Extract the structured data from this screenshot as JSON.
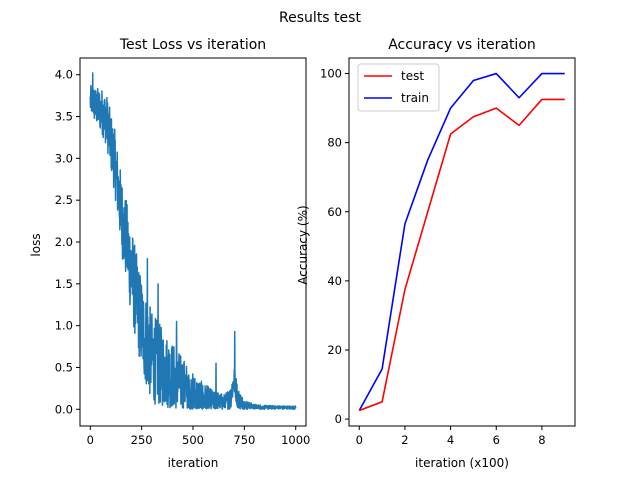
{
  "figure": {
    "suptitle": "Results test"
  },
  "chart_data": [
    {
      "type": "line",
      "title": "Test Loss vs iteration",
      "xlabel": "iteration",
      "ylabel": "loss",
      "xlim": [
        -50,
        1050
      ],
      "ylim": [
        -0.2,
        4.2
      ],
      "xticks": [
        0,
        250,
        500,
        750,
        1000
      ],
      "yticks": [
        0.0,
        0.5,
        1.0,
        1.5,
        2.0,
        2.5,
        3.0,
        3.5,
        4.0
      ],
      "yticks_labels": [
        "0.0",
        "0.5",
        "1.0",
        "1.5",
        "2.0",
        "2.5",
        "3.0",
        "3.5",
        "4.0"
      ],
      "legend": null,
      "series": [
        {
          "color": "#1f77b4",
          "trend": {
            "x": [
              0,
              10,
              25,
              40,
              60,
              80,
              100,
              120,
              140,
              160,
              180,
              200,
              230,
              260,
              300,
              350,
              400,
              450,
              500,
              550,
              600,
              650,
              680,
              700,
              720,
              750,
              800,
              850,
              900,
              950,
              1000
            ],
            "y": [
              3.68,
              3.7,
              3.62,
              3.6,
              3.55,
              3.45,
              3.2,
              2.95,
              2.55,
              2.2,
              1.95,
              1.65,
              1.25,
              0.9,
              0.62,
              0.5,
              0.4,
              0.3,
              0.18,
              0.12,
              0.09,
              0.08,
              0.12,
              0.35,
              0.12,
              0.05,
              0.03,
              0.02,
              0.02,
              0.02,
              0.02
            ]
          },
          "spread": {
            "x": [
              0,
              100,
              200,
              300,
              400,
              500,
              600,
              650,
              700,
              750,
              800,
              1000
            ],
            "y": [
              0.18,
              0.35,
              0.55,
              0.55,
              0.4,
              0.25,
              0.14,
              0.1,
              0.18,
              0.06,
              0.03,
              0.02
            ]
          },
          "spikes": [
            {
              "x": 12,
              "y": 4.02
            },
            {
              "x": 278,
              "y": 1.8
            },
            {
              "x": 330,
              "y": 1.5
            },
            {
              "x": 420,
              "y": 1.05
            },
            {
              "x": 703,
              "y": 0.93
            },
            {
              "x": 612,
              "y": 0.55
            }
          ]
        }
      ]
    },
    {
      "type": "line",
      "title": "Accuracy vs iteration",
      "xlabel": "iteration (x100)",
      "ylabel": "Accuracy (%)",
      "xlim": [
        -0.45,
        9.45
      ],
      "ylim": [
        -2,
        104.5
      ],
      "xticks": [
        0,
        2,
        4,
        6,
        8
      ],
      "yticks": [
        0,
        20,
        40,
        60,
        80,
        100
      ],
      "legend": "upper left",
      "series": [
        {
          "name": "test",
          "color": "#ff0000",
          "x": [
            0,
            1,
            2,
            3,
            4,
            5,
            6,
            7,
            8,
            9
          ],
          "y": [
            2.5,
            5,
            37.5,
            60,
            82.5,
            87.5,
            90,
            85,
            92.5,
            92.5
          ]
        },
        {
          "name": "train",
          "color": "#0000ff",
          "x": [
            0,
            1,
            2,
            3,
            4,
            5,
            6,
            7,
            8,
            9
          ],
          "y": [
            2.5,
            14.5,
            56.5,
            75,
            90,
            98,
            100,
            93,
            100,
            100
          ]
        }
      ]
    }
  ]
}
